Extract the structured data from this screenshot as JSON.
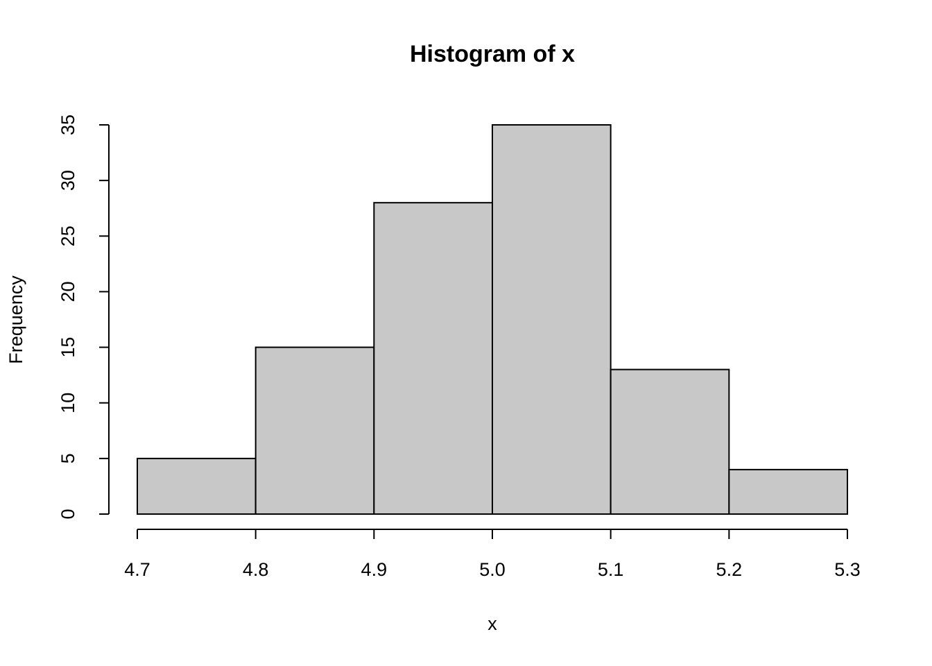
{
  "chart_data": {
    "type": "histogram",
    "title": "Histogram of x",
    "x_label": "x",
    "y_label": "Frequency",
    "bins": [
      4.7,
      4.8,
      4.9,
      5.0,
      5.1,
      5.2,
      5.3
    ],
    "values": [
      5,
      15,
      28,
      35,
      13,
      4
    ],
    "color": "#c8c8c8",
    "xlim": [
      4.7,
      5.3
    ],
    "xticks": [
      4.7,
      4.8,
      4.9,
      {
        "value": 5.0,
        "label": "5.0"
      },
      5.1,
      5.2,
      5.3
    ],
    "ylim": [
      0,
      35
    ],
    "yticks": [
      0,
      5,
      10,
      15,
      20,
      25,
      30,
      35
    ]
  }
}
